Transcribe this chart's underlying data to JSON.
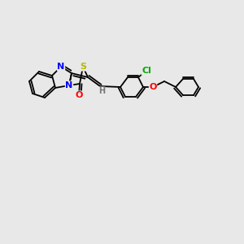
{
  "background_color": "#e8e8e8",
  "figsize": [
    3.0,
    3.0
  ],
  "dpi": 100,
  "bond_color": "#000000",
  "bond_width": 1.2,
  "atom_colors": {
    "S": "#cccc00",
    "N": "#0000ff",
    "O_carbonyl": "#ff0000",
    "O_ether": "#ff0000",
    "Cl": "#00cc00",
    "H": "#888888",
    "C": "#000000"
  },
  "font_size": 7.5
}
